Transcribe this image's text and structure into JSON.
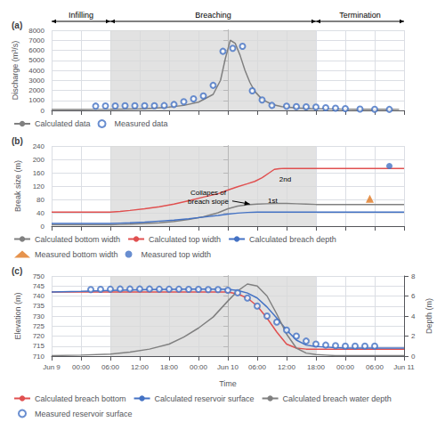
{
  "chart_data": [
    {
      "type": "line",
      "title": "(a)",
      "ylabel": "Discharge (m³/s)",
      "xlim": [
        -36,
        36
      ],
      "xticks": [
        -36,
        -30,
        -24,
        -18,
        -12,
        -6,
        0,
        6,
        12,
        18,
        24,
        30,
        36
      ],
      "ylim": [
        0,
        8000
      ],
      "yticks": [
        0,
        1000,
        2000,
        3000,
        4000,
        5000,
        6000,
        7000,
        8000
      ],
      "grid": true,
      "tick_labels": "y",
      "legend": "bottom",
      "span": [
        -24,
        18
      ],
      "span_color": "#d8d8d8",
      "phases": [
        {
          "label": "Infilling",
          "x_start": -36,
          "x_end": -24
        },
        {
          "label": "Breaching",
          "x_start": -24,
          "x_end": 18
        },
        {
          "label": "Termination",
          "x_start": 18,
          "x_end": 36
        }
      ],
      "series": [
        {
          "name": "Calculated data",
          "type": "line",
          "color": "#808080",
          "x": [
            -36,
            -30,
            -27,
            -24,
            -21,
            -18,
            -15,
            -12,
            -9,
            -6,
            -3,
            -1.5,
            -0.5,
            0.5,
            1.5,
            2.5,
            3.5,
            4.5,
            5.5,
            7,
            9,
            11,
            14,
            17,
            20,
            23,
            26,
            29,
            32,
            35
          ],
          "values": [
            80,
            90,
            100,
            110,
            130,
            160,
            220,
            330,
            500,
            820,
            1600,
            3000,
            5200,
            7000,
            6700,
            5500,
            4000,
            2800,
            1900,
            1100,
            600,
            380,
            250,
            180,
            150,
            130,
            120,
            110,
            105,
            100
          ]
        },
        {
          "name": "Measured data",
          "type": "scatter",
          "marker": "open_circle",
          "color": "#4472c4",
          "x": [
            -27,
            -25,
            -23,
            -21,
            -19,
            -17,
            -15,
            -13,
            -11,
            -9,
            -7,
            -5,
            -3,
            -1,
            1,
            3,
            5,
            7,
            9,
            12,
            14,
            16,
            18,
            20,
            22,
            24,
            27,
            30,
            33
          ],
          "values": [
            430,
            440,
            450,
            460,
            470,
            460,
            470,
            480,
            590,
            870,
            1150,
            1450,
            2500,
            5900,
            6200,
            6400,
            1950,
            1050,
            500,
            420,
            380,
            350,
            330,
            260,
            220,
            175,
            140,
            115,
            100
          ]
        }
      ]
    },
    {
      "type": "line",
      "title": "(b)",
      "ylabel": "Break size (m)",
      "xlim": [
        -36,
        36
      ],
      "xticks": [
        -36,
        -30,
        -24,
        -18,
        -12,
        -6,
        0,
        6,
        12,
        18,
        24,
        30,
        36
      ],
      "ylim": [
        0,
        240
      ],
      "yticks": [
        0,
        40,
        80,
        120,
        160,
        200,
        240
      ],
      "grid": true,
      "tick_labels": "y",
      "legend": "bottom",
      "span": [
        -24,
        18
      ],
      "span_color": "#d8d8d8",
      "annotations": [
        {
          "text": "Collapes of\nbreach slope",
          "x": -4,
          "y": 88,
          "arrow_x": 4.5,
          "arrow_y": 66
        },
        {
          "text": "1st",
          "x": 8.2,
          "y": 62
        },
        {
          "text": "2nd",
          "x": 10.5,
          "y": 128
        }
      ],
      "series": [
        {
          "name": "Calculated bottom width",
          "type": "line",
          "color": "#808080",
          "x": [
            -36,
            -24,
            -22,
            -20,
            -17,
            -14,
            -11,
            -8,
            -5,
            -2,
            0,
            2,
            4,
            6,
            8,
            10,
            12,
            14,
            16,
            18,
            22,
            26,
            30,
            36
          ],
          "values": [
            4,
            4,
            5,
            6,
            8,
            10,
            14,
            20,
            28,
            40,
            52,
            60,
            64,
            66,
            67,
            68,
            68,
            67,
            66,
            65,
            65,
            65,
            65,
            65
          ]
        },
        {
          "name": "Calculated top width",
          "type": "line",
          "color": "#e05050",
          "x": [
            -36,
            -24,
            -22,
            -20,
            -17,
            -14,
            -11,
            -8,
            -5,
            -2,
            0,
            2,
            4,
            5.5,
            7,
            8.5,
            9.5,
            10.5,
            11.5,
            13,
            15,
            18,
            22,
            26,
            30,
            36
          ],
          "values": [
            42,
            42,
            44,
            47,
            52,
            58,
            66,
            76,
            87,
            97,
            108,
            118,
            127,
            134,
            145,
            160,
            170,
            172,
            173,
            173,
            173,
            173,
            173,
            173,
            173,
            173
          ]
        },
        {
          "name": "Calculated breach depth",
          "type": "line",
          "color": "#4472c4",
          "x": [
            -36,
            -24,
            -22,
            -20,
            -17,
            -14,
            -11,
            -8,
            -5,
            -2,
            0,
            2,
            4,
            6,
            8,
            10,
            12,
            16,
            20,
            24,
            28,
            32,
            36
          ],
          "values": [
            8,
            8,
            9,
            10,
            12,
            15,
            18,
            22,
            27,
            32,
            36,
            39,
            41,
            42,
            42,
            42,
            42,
            42,
            42,
            42,
            42,
            42,
            42
          ]
        },
        {
          "name": "Measured bottom width",
          "type": "scatter",
          "marker": "triangle",
          "color": "#e07820",
          "x": [
            29
          ],
          "values": [
            82
          ]
        },
        {
          "name": "Measured top width",
          "type": "scatter",
          "marker": "circle",
          "color": "#4472c4",
          "x": [
            33
          ],
          "values": [
            180
          ]
        }
      ]
    },
    {
      "type": "line",
      "title": "(c)",
      "xlabel": "Time",
      "ylabel": "Elevation (m)",
      "y2label": "Depth (m)",
      "xlim": [
        -36,
        36
      ],
      "xticks": [
        {
          "value": -36,
          "label": "Jun 9"
        },
        {
          "value": -30,
          "label": "00:00"
        },
        {
          "value": -24,
          "label": "06:00"
        },
        {
          "value": -18,
          "label": "12:00"
        },
        {
          "value": -12,
          "label": "18:00"
        },
        {
          "value": -6,
          "label": "00:00"
        },
        {
          "value": 0,
          "label": "Jun 10"
        },
        {
          "value": 6,
          "label": "06:00"
        },
        {
          "value": 12,
          "label": "12:00"
        },
        {
          "value": 18,
          "label": "18:00"
        },
        {
          "value": 24,
          "label": "00:00"
        },
        {
          "value": 30,
          "label": "06:00"
        },
        {
          "value": 36,
          "label": "Jun 11"
        }
      ],
      "ylim": [
        710,
        750
      ],
      "yticks": [
        710,
        715,
        720,
        725,
        730,
        735,
        740,
        745,
        750
      ],
      "y2lim": [
        0,
        8
      ],
      "y2ticks": [
        0,
        2,
        4,
        6,
        8
      ],
      "grid": true,
      "legend": "bottom",
      "span": [
        -24,
        18
      ],
      "span_color": "#d8d8d8",
      "series": [
        {
          "name": "Calculated breach bottom",
          "type": "line",
          "color": "#e05050",
          "x": [
            -36,
            -30,
            -24,
            -18,
            -12,
            -9,
            -6,
            -3,
            0,
            2,
            4,
            6,
            8,
            10,
            12,
            14,
            16,
            18,
            22,
            26,
            30,
            34,
            36
          ],
          "values": [
            742,
            742,
            742,
            742,
            742,
            742,
            742,
            742,
            742,
            741,
            739,
            735,
            729,
            722,
            716,
            714,
            713.5,
            713.5,
            713.5,
            713.5,
            713.5,
            713.5,
            713.5
          ]
        },
        {
          "name": "Calculated reservoir surface",
          "type": "line",
          "color": "#4472c4",
          "x": [
            -36,
            -30,
            -24,
            -20,
            -16,
            -12,
            -8,
            -4,
            0,
            2,
            4,
            6,
            8,
            10,
            12,
            14,
            16,
            18,
            20,
            22,
            24,
            26,
            28,
            30,
            32,
            34,
            36
          ],
          "values": [
            742,
            742.3,
            742.8,
            743,
            743.2,
            743.3,
            743.4,
            743.4,
            743.3,
            742.8,
            741.5,
            739,
            734.5,
            729,
            723,
            718,
            715.5,
            714.8,
            714.5,
            714.2,
            714,
            714,
            714,
            714,
            714,
            714,
            714
          ]
        },
        {
          "name": "Calculated breach water depth",
          "type": "line",
          "color": "#808080",
          "axis": "y2",
          "x": [
            -36,
            -30,
            -24,
            -20,
            -16,
            -12,
            -9,
            -6,
            -3,
            0,
            2,
            4,
            6,
            8,
            10,
            12,
            14,
            16,
            18,
            20,
            22,
            24,
            28,
            32,
            36
          ],
          "values": [
            0.05,
            0.1,
            0.2,
            0.4,
            0.7,
            1.2,
            1.9,
            2.8,
            3.9,
            5.5,
            6.5,
            7.2,
            7.0,
            6.0,
            4.2,
            2.2,
            0.8,
            0.3,
            0.15,
            0.1,
            0.05,
            0.05,
            0.05,
            0.05,
            0.05
          ]
        },
        {
          "name": "Measured reservoir surface",
          "type": "scatter",
          "marker": "open_circle",
          "color": "#4472c4",
          "x": [
            -28,
            -26,
            -24,
            -22,
            -20,
            -18,
            -16,
            -14,
            -12,
            -10,
            -8,
            -6,
            -4,
            -2,
            0,
            2,
            4,
            6,
            8,
            10,
            12,
            14,
            16,
            18,
            20,
            22,
            24,
            26,
            28,
            30
          ],
          "values": [
            743.2,
            743.3,
            743.4,
            743.5,
            743.5,
            743.5,
            743.5,
            743.4,
            743.4,
            743.4,
            743.3,
            743.3,
            743.2,
            743.2,
            742.9,
            741.6,
            739,
            735,
            730,
            727,
            723,
            720,
            717.5,
            716,
            715.5,
            715.2,
            715,
            715,
            715,
            715
          ]
        }
      ]
    }
  ]
}
